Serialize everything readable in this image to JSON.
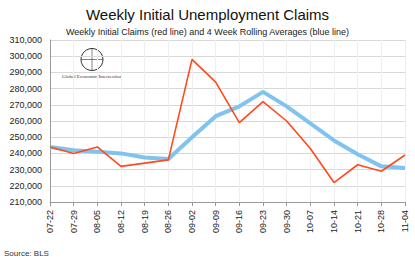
{
  "chart_data": {
    "type": "line",
    "title": "Weekly Initial Unemployment Claims",
    "subtitle": "Weekly Initial Claims (red line) and 4 Week Rolling Averages (blue line)",
    "source": "Source: BLS",
    "logo_text": "Global Economic Intersection",
    "categories": [
      "07-22",
      "07-29",
      "08-05",
      "08-12",
      "08-19",
      "08-26",
      "09-02",
      "09-09",
      "09-16",
      "09-23",
      "09-30",
      "10-07",
      "10-14",
      "10-21",
      "10-28",
      "11-04"
    ],
    "series": [
      {
        "name": "Weekly Initial Claims",
        "color": "#ff4a1c",
        "values": [
          244000,
          240000,
          244000,
          232000,
          234000,
          236000,
          298000,
          284000,
          259000,
          272000,
          260000,
          243000,
          222000,
          233000,
          229000,
          239000
        ]
      },
      {
        "name": "4 Week Rolling Averages",
        "color": "#7fc3ee",
        "values": [
          244000,
          242000,
          241000,
          240000,
          237500,
          236500,
          250000,
          263000,
          269000,
          278000,
          269000,
          258500,
          248000,
          239500,
          232000,
          231000
        ]
      }
    ],
    "ylim": [
      210000,
      310000
    ],
    "yticks": [
      {
        "value": 210000,
        "label": "210,000"
      },
      {
        "value": 220000,
        "label": "220,000"
      },
      {
        "value": 230000,
        "label": "230,000"
      },
      {
        "value": 240000,
        "label": "240,000"
      },
      {
        "value": 250000,
        "label": "250,000"
      },
      {
        "value": 260000,
        "label": "260,000"
      },
      {
        "value": 270000,
        "label": "270,000"
      },
      {
        "value": 280000,
        "label": "280,000"
      },
      {
        "value": 290000,
        "label": "290,000"
      },
      {
        "value": 300000,
        "label": "300,000"
      },
      {
        "value": 310000,
        "label": "310,000"
      }
    ],
    "grid": true
  }
}
